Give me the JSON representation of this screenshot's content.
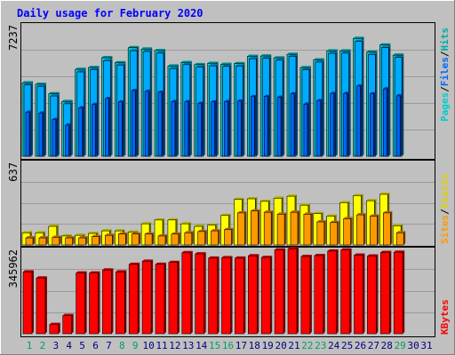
{
  "chart_data": [
    {
      "type": "bar",
      "title": "Daily usage for February 2020",
      "panel": "pages-files-hits",
      "y_max_label": "7237",
      "ylim": [
        0,
        7237
      ],
      "legend": [
        "Pages",
        "/",
        "Files",
        "/",
        "Hits"
      ],
      "categories": [
        "1",
        "2",
        "3",
        "4",
        "5",
        "6",
        "7",
        "8",
        "9",
        "10",
        "11",
        "12",
        "13",
        "14",
        "15",
        "16",
        "17",
        "18",
        "19",
        "20",
        "21",
        "22",
        "23",
        "24",
        "25",
        "26",
        "27",
        "28",
        "29",
        "30",
        "31"
      ],
      "series": [
        {
          "name": "Hits",
          "values": [
            4330,
            4250,
            3690,
            3230,
            5130,
            5240,
            5820,
            5520,
            6410,
            6330,
            6240,
            5330,
            5530,
            5410,
            5490,
            5430,
            5470,
            5900,
            5920,
            5810,
            6020,
            5230,
            5690,
            6220,
            6220,
            6960,
            6150,
            6570,
            5970,
            null,
            null
          ]
        },
        {
          "name": "Files",
          "values": [
            4210,
            4130,
            3560,
            3100,
            4980,
            5120,
            5650,
            5390,
            6230,
            6190,
            6090,
            5180,
            5410,
            5270,
            5340,
            5310,
            5330,
            5760,
            5780,
            5670,
            5900,
            5110,
            5560,
            6080,
            6090,
            6780,
            6010,
            6420,
            5840,
            null,
            null
          ]
        },
        {
          "name": "Pages",
          "values": [
            2600,
            2550,
            2170,
            1840,
            2860,
            3060,
            3410,
            3210,
            3880,
            3830,
            3780,
            3230,
            3220,
            3130,
            3210,
            3230,
            3260,
            3530,
            3530,
            3480,
            3690,
            3080,
            3290,
            3710,
            3710,
            4150,
            3690,
            3980,
            3570,
            null,
            null
          ]
        }
      ]
    },
    {
      "type": "bar",
      "panel": "sites-visits",
      "y_max_label": "637",
      "ylim": [
        0,
        637
      ],
      "legend": [
        "Sites",
        "/",
        "Visits"
      ],
      "categories": [
        "1",
        "2",
        "3",
        "4",
        "5",
        "6",
        "7",
        "8",
        "9",
        "10",
        "11",
        "12",
        "13",
        "14",
        "15",
        "16",
        "17",
        "18",
        "19",
        "20",
        "21",
        "22",
        "23",
        "24",
        "25",
        "26",
        "27",
        "28",
        "29",
        "30",
        "31"
      ],
      "series": [
        {
          "name": "Visits",
          "values": [
            95,
            95,
            145,
            70,
            75,
            90,
            110,
            110,
            100,
            165,
            195,
            195,
            165,
            145,
            155,
            230,
            355,
            360,
            340,
            365,
            380,
            310,
            245,
            225,
            330,
            385,
            345,
            395,
            150,
            null,
            null
          ]
        },
        {
          "name": "Sites",
          "values": [
            55,
            55,
            60,
            55,
            55,
            65,
            75,
            85,
            85,
            85,
            70,
            85,
            95,
            105,
            110,
            120,
            250,
            265,
            255,
            240,
            255,
            240,
            180,
            175,
            205,
            235,
            225,
            250,
            95,
            null,
            null
          ]
        }
      ]
    },
    {
      "type": "bar",
      "panel": "kbytes",
      "y_max_label": "345962",
      "ylim": [
        0,
        345962
      ],
      "legend": [
        "KBytes"
      ],
      "categories": [
        "1",
        "2",
        "3",
        "4",
        "5",
        "6",
        "7",
        "8",
        "9",
        "10",
        "11",
        "12",
        "13",
        "14",
        "15",
        "16",
        "17",
        "18",
        "19",
        "20",
        "21",
        "22",
        "23",
        "24",
        "25",
        "26",
        "27",
        "28",
        "29",
        "30",
        "31"
      ],
      "weekend_days": [
        "1",
        "2",
        "8",
        "9",
        "15",
        "16",
        "22",
        "23",
        "29"
      ],
      "series": [
        {
          "name": "KBytes",
          "values": [
            262000,
            236000,
            39000,
            77000,
            257000,
            257000,
            270000,
            262000,
            294000,
            307000,
            294000,
            302000,
            343000,
            338000,
            320000,
            322000,
            320000,
            330000,
            323000,
            355000,
            360000,
            327000,
            331000,
            350000,
            355000,
            333000,
            329000,
            344000,
            345000,
            null,
            null
          ]
        }
      ]
    }
  ],
  "colors": {
    "background": "#c0c0c0",
    "title": "#0000ff",
    "weekday_label": "#000080",
    "weekend_label": "#00a060",
    "hits": "#00cccc",
    "files": "#00aaff",
    "pages": "#0066ff",
    "visits": "#ffff00",
    "sites": "#ff9900",
    "kbytes": "#ff0000"
  }
}
